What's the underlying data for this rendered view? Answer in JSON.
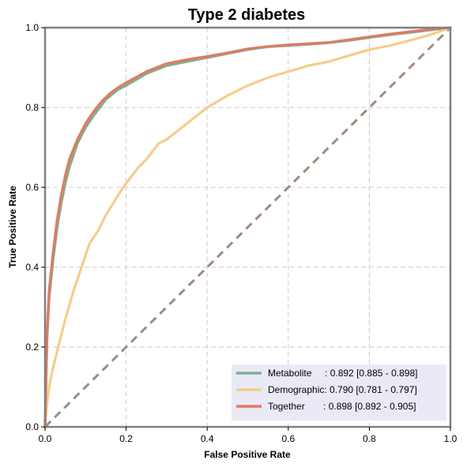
{
  "chart_data": {
    "type": "line",
    "title": "Type 2 diabetes",
    "xlabel": "False Positive Rate",
    "ylabel": "True Positive Rate",
    "xlim": [
      0,
      1
    ],
    "ylim": [
      0,
      1
    ],
    "xticks": [
      "0.0",
      "0.2",
      "0.4",
      "0.6",
      "0.8",
      "1.0"
    ],
    "yticks": [
      "0.0",
      "0.2",
      "0.4",
      "0.6",
      "0.8",
      "1.0"
    ],
    "grid": true,
    "legend_position": "bottom-right",
    "series": [
      {
        "name": "Metabolite",
        "legend_label": "Metabolite     : 0.892 [0.885 - 0.898]",
        "color": "#7fb08e",
        "x": [
          0,
          0.005,
          0.01,
          0.02,
          0.03,
          0.04,
          0.05,
          0.06,
          0.08,
          0.1,
          0.12,
          0.15,
          0.18,
          0.2,
          0.25,
          0.3,
          0.35,
          0.4,
          0.45,
          0.5,
          0.55,
          0.6,
          0.65,
          0.7,
          0.75,
          0.8,
          0.85,
          0.9,
          0.95,
          1.0
        ],
        "y": [
          0,
          0.22,
          0.32,
          0.42,
          0.5,
          0.56,
          0.61,
          0.65,
          0.71,
          0.75,
          0.78,
          0.82,
          0.845,
          0.855,
          0.885,
          0.905,
          0.915,
          0.925,
          0.935,
          0.945,
          0.952,
          0.955,
          0.958,
          0.962,
          0.968,
          0.975,
          0.982,
          0.988,
          0.994,
          1.0
        ]
      },
      {
        "name": "Demographic",
        "legend_label": "Demographic: 0.790 [0.781 - 0.797]",
        "color": "#f5cd8a",
        "x": [
          0,
          0.005,
          0.01,
          0.02,
          0.03,
          0.05,
          0.07,
          0.09,
          0.11,
          0.13,
          0.15,
          0.18,
          0.2,
          0.23,
          0.25,
          0.28,
          0.3,
          0.35,
          0.4,
          0.45,
          0.5,
          0.55,
          0.6,
          0.65,
          0.7,
          0.75,
          0.8,
          0.85,
          0.9,
          0.95,
          1.0
        ],
        "y": [
          0,
          0.06,
          0.1,
          0.15,
          0.19,
          0.27,
          0.34,
          0.4,
          0.46,
          0.49,
          0.53,
          0.58,
          0.61,
          0.65,
          0.67,
          0.71,
          0.72,
          0.76,
          0.8,
          0.83,
          0.855,
          0.875,
          0.89,
          0.905,
          0.915,
          0.93,
          0.945,
          0.955,
          0.968,
          0.982,
          1.0
        ]
      },
      {
        "name": "Together",
        "legend_label": "Together       : 0.898 [0.892 - 0.905]",
        "color": "#e07a62",
        "x": [
          0,
          0.005,
          0.01,
          0.02,
          0.03,
          0.04,
          0.05,
          0.06,
          0.08,
          0.1,
          0.12,
          0.14,
          0.16,
          0.18,
          0.2,
          0.25,
          0.3,
          0.35,
          0.4,
          0.45,
          0.5,
          0.55,
          0.6,
          0.65,
          0.7,
          0.75,
          0.8,
          0.85,
          0.9,
          0.95,
          1.0
        ],
        "y": [
          0,
          0.24,
          0.34,
          0.44,
          0.52,
          0.58,
          0.63,
          0.67,
          0.72,
          0.76,
          0.79,
          0.815,
          0.835,
          0.85,
          0.862,
          0.89,
          0.91,
          0.92,
          0.928,
          0.937,
          0.947,
          0.953,
          0.957,
          0.96,
          0.963,
          0.97,
          0.977,
          0.984,
          0.99,
          0.996,
          1.0
        ]
      }
    ],
    "reference_line": {
      "color": "#a38a7d",
      "x": [
        0,
        1
      ],
      "y": [
        0,
        1
      ]
    },
    "legend_background": "#eaeaf7",
    "frame_color": "#808080"
  }
}
